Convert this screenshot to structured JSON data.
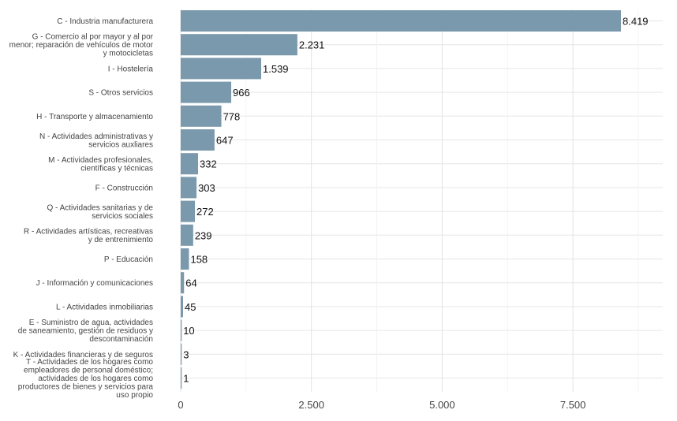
{
  "chart_data": {
    "type": "bar",
    "orientation": "horizontal",
    "bar_color": "#7a99ad",
    "grid": true,
    "xlim": [
      0,
      9000
    ],
    "x_ticks": [
      0,
      2500,
      5000,
      7500
    ],
    "x_tick_labels": [
      "0",
      "2.500",
      "5.000",
      "7.500"
    ],
    "categories": [
      [
        "C - Industria manufacturera"
      ],
      [
        "G - Comercio al por mayor y al por",
        "menor; reparación de vehículos de motor",
        "y motocicletas"
      ],
      [
        "I - Hostelería"
      ],
      [
        "S - Otros servicios"
      ],
      [
        "H - Transporte y almacenamiento"
      ],
      [
        "N - Actividades administrativas y",
        "servicios auxliares"
      ],
      [
        "M - Actividades profesionales,",
        "científicas y técnicas"
      ],
      [
        "F - Construcción"
      ],
      [
        "Q - Actividades sanitarias y de",
        "servicios sociales"
      ],
      [
        "R - Actividades artísticas, recreativas",
        "y de entrenimiento"
      ],
      [
        "P - Educación"
      ],
      [
        "J - Información y comunicaciones"
      ],
      [
        "L - Actividades inmobiliarias"
      ],
      [
        "E - Suministro de agua, actividades",
        "de saneamiento, gestión de residuos y",
        "descontaminación"
      ],
      [
        "K - Actividades financieras y de seguros"
      ],
      [
        "T - Actividades de los hogares como",
        "empleadores de personal doméstico;",
        "actividades de los hogares como",
        "productores de bienes y servicios para",
        "uso propio"
      ]
    ],
    "values": [
      8419,
      2231,
      1539,
      966,
      778,
      647,
      332,
      303,
      272,
      239,
      158,
      64,
      45,
      10,
      3,
      1
    ],
    "value_labels": [
      "8.419",
      "2.231",
      "1.539",
      "966",
      "778",
      "647",
      "332",
      "303",
      "272",
      "239",
      "158",
      "64",
      "45",
      "10",
      "3",
      "1"
    ]
  }
}
